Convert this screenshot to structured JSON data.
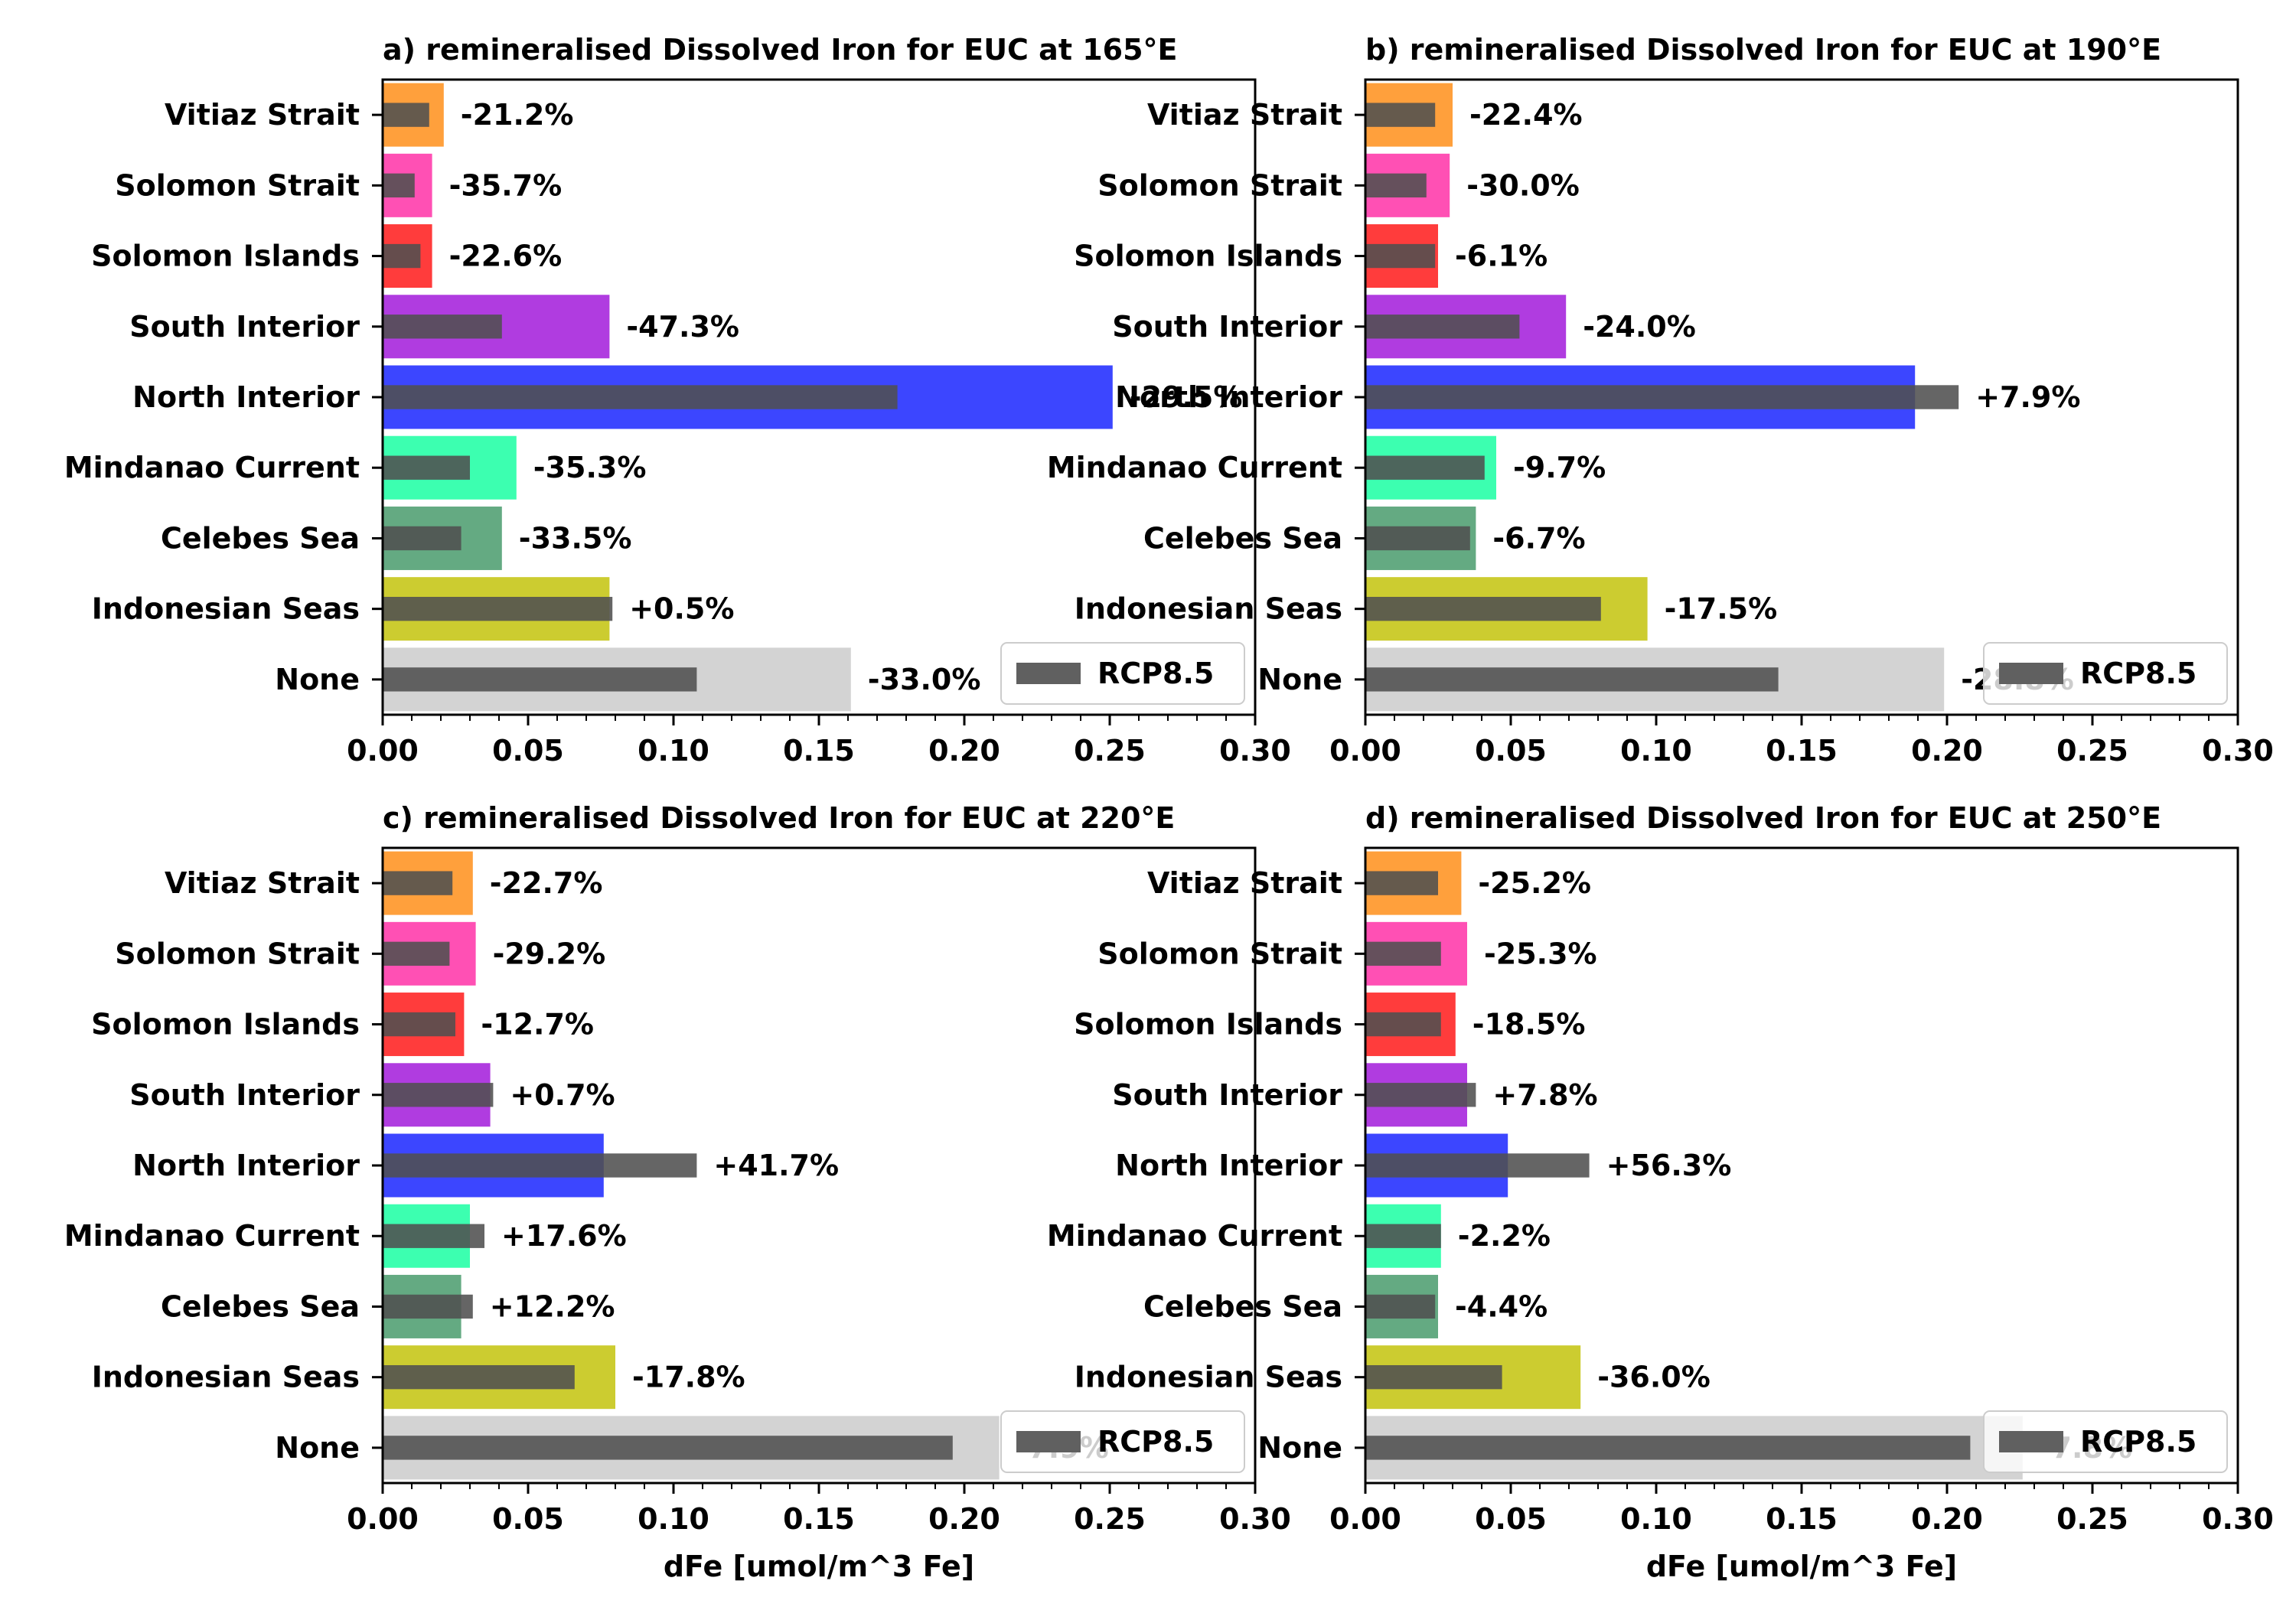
{
  "chart_data": [
    {
      "type": "bar",
      "orientation": "horizontal",
      "title": "a) remineralised Dissolved Iron for EUC at 165°E",
      "xlabel": "",
      "xlim": [
        0,
        0.3
      ],
      "xticks": [
        "0.00",
        "0.05",
        "0.10",
        "0.15",
        "0.20",
        "0.25",
        "0.30"
      ],
      "categories": [
        "Vitiaz Strait",
        "Solomon Strait",
        "Solomon Islands",
        "South Interior",
        "North Interior",
        "Mindanao Current",
        "Celebes Sea",
        "Indonesian Seas",
        "None"
      ],
      "series": [
        {
          "name": "",
          "values": [
            0.021,
            0.017,
            0.017,
            0.078,
            0.251,
            0.046,
            0.041,
            0.078,
            0.161
          ]
        },
        {
          "name": "RCP8.5",
          "values": [
            0.016,
            0.011,
            0.013,
            0.041,
            0.177,
            0.03,
            0.027,
            0.079,
            0.108
          ]
        }
      ],
      "change_labels": [
        "-21.2%",
        "-35.7%",
        "-22.6%",
        "-47.3%",
        "-29.5%",
        "-35.3%",
        "-33.5%",
        "+0.5%",
        "-33.0%"
      ],
      "legend": {
        "label": "RCP8.5",
        "position": "lower right"
      }
    },
    {
      "type": "bar",
      "orientation": "horizontal",
      "title": "b) remineralised Dissolved Iron for EUC at 190°E",
      "xlabel": "",
      "xlim": [
        0,
        0.3
      ],
      "xticks": [
        "0.00",
        "0.05",
        "0.10",
        "0.15",
        "0.20",
        "0.25",
        "0.30"
      ],
      "categories": [
        "Vitiaz Strait",
        "Solomon Strait",
        "Solomon Islands",
        "South Interior",
        "North Interior",
        "Mindanao Current",
        "Celebes Sea",
        "Indonesian Seas",
        "None"
      ],
      "series": [
        {
          "name": "",
          "values": [
            0.03,
            0.029,
            0.025,
            0.069,
            0.189,
            0.045,
            0.038,
            0.097,
            0.199
          ]
        },
        {
          "name": "RCP8.5",
          "values": [
            0.024,
            0.021,
            0.024,
            0.053,
            0.204,
            0.041,
            0.036,
            0.081,
            0.142
          ]
        }
      ],
      "change_labels": [
        "-22.4%",
        "-30.0%",
        "-6.1%",
        "-24.0%",
        "+7.9%",
        "-9.7%",
        "-6.7%",
        "-17.5%",
        "-28.8%"
      ],
      "legend": {
        "label": "RCP8.5",
        "position": "lower right"
      }
    },
    {
      "type": "bar",
      "orientation": "horizontal",
      "title": "c) remineralised Dissolved Iron for EUC at 220°E",
      "xlabel": "dFe [umol/m^3 Fe]",
      "xlim": [
        0,
        0.3
      ],
      "xticks": [
        "0.00",
        "0.05",
        "0.10",
        "0.15",
        "0.20",
        "0.25",
        "0.30"
      ],
      "categories": [
        "Vitiaz Strait",
        "Solomon Strait",
        "Solomon Islands",
        "South Interior",
        "North Interior",
        "Mindanao Current",
        "Celebes Sea",
        "Indonesian Seas",
        "None"
      ],
      "series": [
        {
          "name": "",
          "values": [
            0.031,
            0.032,
            0.028,
            0.037,
            0.076,
            0.03,
            0.027,
            0.08,
            0.212
          ]
        },
        {
          "name": "RCP8.5",
          "values": [
            0.024,
            0.023,
            0.025,
            0.038,
            0.108,
            0.035,
            0.031,
            0.066,
            0.196
          ]
        }
      ],
      "change_labels": [
        "-22.7%",
        "-29.2%",
        "-12.7%",
        "+0.7%",
        "+41.7%",
        "+17.6%",
        "+12.2%",
        "-17.8%",
        "-7.9%"
      ],
      "legend": {
        "label": "RCP8.5",
        "position": "lower right"
      }
    },
    {
      "type": "bar",
      "orientation": "horizontal",
      "title": "d) remineralised Dissolved Iron for EUC at 250°E",
      "xlabel": "dFe [umol/m^3 Fe]",
      "xlim": [
        0,
        0.3
      ],
      "xticks": [
        "0.00",
        "0.05",
        "0.10",
        "0.15",
        "0.20",
        "0.25",
        "0.30"
      ],
      "categories": [
        "Vitiaz Strait",
        "Solomon Strait",
        "Solomon Islands",
        "South Interior",
        "North Interior",
        "Mindanao Current",
        "Celebes Sea",
        "Indonesian Seas",
        "None"
      ],
      "series": [
        {
          "name": "",
          "values": [
            0.033,
            0.035,
            0.031,
            0.035,
            0.049,
            0.026,
            0.025,
            0.074,
            0.226
          ]
        },
        {
          "name": "RCP8.5",
          "values": [
            0.025,
            0.026,
            0.026,
            0.038,
            0.077,
            0.026,
            0.024,
            0.047,
            0.208
          ]
        }
      ],
      "change_labels": [
        "-25.2%",
        "-25.3%",
        "-18.5%",
        "+7.8%",
        "+56.3%",
        "-2.2%",
        "-4.4%",
        "-36.0%",
        "-7.8%"
      ],
      "legend": {
        "label": "RCP8.5",
        "position": "lower right"
      }
    }
  ],
  "colors": {
    "categories": [
      "#ffa03c",
      "#ff50b4",
      "#ff3c3c",
      "#b03ce0",
      "#3c46ff",
      "#3cffb0",
      "#64aa82",
      "#cccc30",
      "#d3d3d3"
    ],
    "rcp": "#505050",
    "legend_patch": "#606060"
  }
}
